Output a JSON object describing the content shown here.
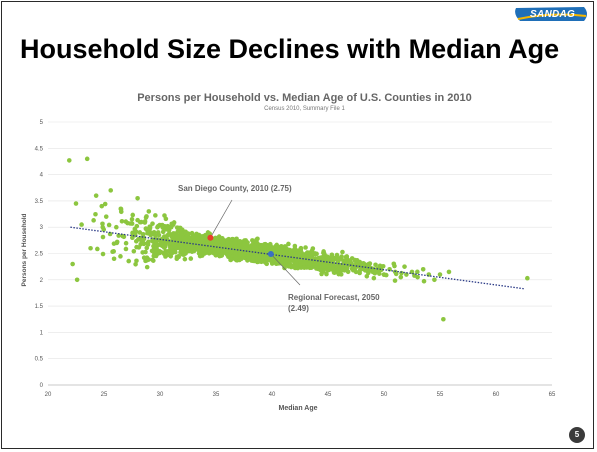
{
  "header": {
    "logo_text": "SANDAG",
    "title": "Household Size Declines with Median Age"
  },
  "footer": {
    "page_number": "5"
  },
  "colors": {
    "points": "#8cc63f",
    "trend": "#2b3a86",
    "san_diego": "#e8402a",
    "regional": "#3a6fc4",
    "logo": "#1f6fb8",
    "logo_accent": "#f5b700"
  },
  "chart_data": {
    "type": "scatter",
    "title": "Persons per Household vs. Median Age of U.S. Counties in 2010",
    "subtitle": "Census 2010, Summary File 1",
    "xlabel": "Median Age",
    "ylabel": "Persons per Household",
    "xlim": [
      20,
      65
    ],
    "ylim": [
      0,
      5
    ],
    "xticks": [
      20,
      25,
      30,
      35,
      40,
      45,
      50,
      55,
      60,
      65
    ],
    "yticks": [
      0,
      0.5,
      1,
      1.5,
      2,
      2.5,
      3,
      3.5,
      4,
      4.5,
      5
    ],
    "grid": true,
    "trendline": {
      "x": [
        22,
        62.5
      ],
      "y": [
        3.0,
        1.83
      ]
    },
    "points_sample": [
      [
        21.9,
        4.27
      ],
      [
        23.5,
        4.3
      ],
      [
        22.5,
        3.45
      ],
      [
        23.0,
        3.05
      ],
      [
        22.2,
        2.3
      ],
      [
        22.6,
        2.0
      ],
      [
        23.8,
        2.6
      ],
      [
        24.3,
        3.6
      ],
      [
        24.8,
        3.4
      ],
      [
        25.6,
        3.7
      ],
      [
        25.2,
        3.2
      ],
      [
        26.1,
        3.0
      ],
      [
        25.9,
        2.4
      ],
      [
        26.5,
        3.35
      ],
      [
        27.5,
        3.15
      ],
      [
        28.2,
        2.9
      ],
      [
        28.0,
        3.55
      ],
      [
        29.0,
        3.3
      ],
      [
        29.5,
        2.5
      ],
      [
        30.2,
        2.7
      ],
      [
        31.0,
        3.0
      ],
      [
        31.5,
        2.4
      ],
      [
        32.0,
        2.95
      ],
      [
        32.5,
        2.7
      ],
      [
        33.0,
        2.55
      ],
      [
        33.5,
        2.85
      ],
      [
        34.0,
        2.6
      ],
      [
        34.5,
        2.75
      ],
      [
        35.0,
        2.5
      ],
      [
        35.5,
        2.65
      ],
      [
        36.0,
        2.55
      ],
      [
        36.5,
        2.45
      ],
      [
        37.0,
        2.6
      ],
      [
        37.5,
        2.5
      ],
      [
        38.0,
        2.4
      ],
      [
        38.5,
        2.55
      ],
      [
        39.0,
        2.45
      ],
      [
        39.5,
        2.35
      ],
      [
        40.0,
        2.5
      ],
      [
        40.5,
        2.4
      ],
      [
        41.0,
        2.3
      ],
      [
        41.5,
        2.45
      ],
      [
        42.0,
        2.35
      ],
      [
        42.5,
        2.3
      ],
      [
        43.0,
        2.4
      ],
      [
        43.5,
        2.25
      ],
      [
        44.0,
        2.35
      ],
      [
        44.5,
        2.3
      ],
      [
        45.0,
        2.2
      ],
      [
        45.5,
        2.3
      ],
      [
        46.0,
        2.25
      ],
      [
        46.5,
        2.2
      ],
      [
        47.0,
        2.3
      ],
      [
        47.5,
        2.15
      ],
      [
        48.0,
        2.25
      ],
      [
        48.5,
        2.2
      ],
      [
        49.0,
        2.15
      ],
      [
        49.5,
        2.2
      ],
      [
        50.0,
        2.1
      ],
      [
        50.5,
        2.2
      ],
      [
        51.0,
        2.15
      ],
      [
        51.5,
        2.05
      ],
      [
        52.0,
        2.1
      ],
      [
        52.5,
        2.15
      ],
      [
        53.0,
        2.05
      ],
      [
        53.5,
        2.2
      ],
      [
        54.0,
        2.1
      ],
      [
        54.5,
        2.0
      ],
      [
        55.0,
        2.1
      ],
      [
        55.3,
        1.25
      ],
      [
        55.8,
        2.15
      ],
      [
        62.8,
        2.03
      ]
    ],
    "highlights": [
      {
        "label": "San Diego County, 2010 (2.75)",
        "x": 34.5,
        "y": 2.8
      },
      {
        "label": "Regional Forecast, 2050",
        "label2": "(2.49)",
        "x": 39.9,
        "y": 2.49
      }
    ]
  }
}
